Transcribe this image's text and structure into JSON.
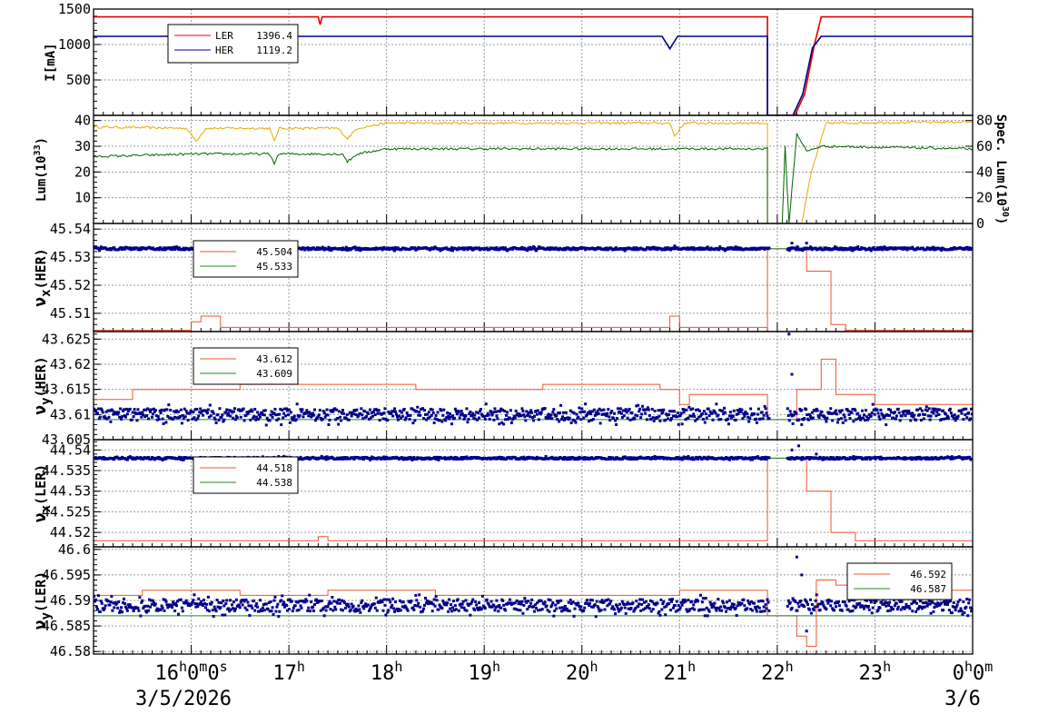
{
  "chart_data": [
    {
      "type": "line",
      "ylabel": "I[mA]",
      "ylim": [
        0,
        1500
      ],
      "yticks": [
        "500",
        "1000",
        "1500"
      ],
      "grid": true,
      "legend": {
        "position": "top-left",
        "entries": [
          {
            "name": "LER",
            "value": "1396.4",
            "color": "#e00000"
          },
          {
            "name": "HER",
            "value": "1119.2",
            "color": "#00008b"
          }
        ]
      },
      "series": [
        {
          "name": "LER",
          "color": "#e00000",
          "points": [
            [
              15.0,
              1390
            ],
            [
              17.3,
              1390
            ],
            [
              17.32,
              1280
            ],
            [
              17.34,
              1390
            ],
            [
              21.9,
              1390
            ],
            [
              21.9,
              0
            ],
            [
              22.18,
              0
            ],
            [
              22.28,
              300
            ],
            [
              22.38,
              1000
            ],
            [
              22.45,
              1390
            ],
            [
              24.0,
              1390
            ]
          ]
        },
        {
          "name": "HER",
          "color": "#00008b",
          "points": [
            [
              15.0,
              1115
            ],
            [
              20.82,
              1115
            ],
            [
              20.9,
              940
            ],
            [
              20.98,
              1115
            ],
            [
              21.9,
              1115
            ],
            [
              21.9,
              0
            ],
            [
              22.16,
              0
            ],
            [
              22.26,
              300
            ],
            [
              22.36,
              950
            ],
            [
              22.45,
              1115
            ],
            [
              24.0,
              1115
            ]
          ]
        }
      ]
    },
    {
      "type": "line",
      "ylabel": "Lum(10^33)",
      "ylabel_right": "Spec. Lum(10^30)",
      "ylim": [
        0,
        42
      ],
      "yticks": [
        "10",
        "20",
        "30",
        "40"
      ],
      "ylim_right": [
        0,
        84
      ],
      "yticks_right": [
        "0",
        "20",
        "40",
        "60",
        "80"
      ],
      "grid": true,
      "series": [
        {
          "name": "",
          "axis": "left",
          "color": "#e6a800",
          "points": [
            [
              15.0,
              37.5
            ],
            [
              15.95,
              37
            ],
            [
              16.05,
              32
            ],
            [
              16.15,
              37
            ],
            [
              16.8,
              37
            ],
            [
              16.85,
              32
            ],
            [
              16.9,
              37
            ],
            [
              17.5,
              37
            ],
            [
              17.6,
              33
            ],
            [
              17.7,
              37
            ],
            [
              18.0,
              39
            ],
            [
              20.0,
              39
            ],
            [
              20.9,
              39
            ],
            [
              20.95,
              34
            ],
            [
              21.05,
              39
            ],
            [
              21.9,
              39
            ],
            [
              21.9,
              0
            ],
            [
              22.25,
              0
            ],
            [
              22.35,
              20
            ],
            [
              22.5,
              39
            ],
            [
              24.0,
              39.5
            ]
          ]
        },
        {
          "name": "",
          "axis": "left",
          "color": "#006400",
          "points": [
            [
              15.0,
              26
            ],
            [
              16.05,
              27
            ],
            [
              16.8,
              27
            ],
            [
              16.85,
              23.5
            ],
            [
              16.9,
              27
            ],
            [
              17.55,
              27
            ],
            [
              17.6,
              24
            ],
            [
              17.7,
              27
            ],
            [
              18.0,
              29
            ],
            [
              21.9,
              29
            ],
            [
              21.9,
              0
            ],
            [
              22.05,
              0
            ],
            [
              22.08,
              30
            ],
            [
              22.12,
              0
            ],
            [
              22.2,
              35
            ],
            [
              22.3,
              28
            ],
            [
              22.45,
              30
            ],
            [
              24.0,
              29
            ]
          ]
        }
      ]
    },
    {
      "type": "scatter",
      "ylabel": "νx(HER)",
      "ylim": [
        45.5035,
        45.542
      ],
      "yticks": [
        "45.51",
        "45.52",
        "45.53",
        "45.54"
      ],
      "grid": true,
      "legend": {
        "position": "top-left",
        "entries": [
          {
            "name": "",
            "value": "45.504",
            "color": "#ee5533"
          },
          {
            "name": "",
            "value": "45.533",
            "color": "#228b22"
          }
        ]
      },
      "setpoint_line": {
        "color": "#ee5533",
        "points": [
          [
            15.0,
            45.504
          ],
          [
            16.0,
            45.507
          ],
          [
            16.1,
            45.509
          ],
          [
            16.3,
            45.505
          ],
          [
            20.9,
            45.509
          ],
          [
            21.0,
            45.505
          ],
          [
            21.9,
            45.504
          ],
          [
            21.9,
            45.533
          ],
          [
            22.3,
            45.525
          ],
          [
            22.55,
            45.506
          ],
          [
            22.7,
            45.504
          ],
          [
            24.0,
            45.504
          ]
        ]
      },
      "reference_line": {
        "color": "#228b22",
        "value": 45.533
      },
      "measured": {
        "color": "#00008b",
        "mean": 45.533,
        "spread": 0.0004,
        "excursions": [
          [
            16.05,
            45.532
          ],
          [
            20.95,
            45.534
          ],
          [
            22.15,
            45.535
          ],
          [
            22.3,
            45.535
          ]
        ]
      }
    },
    {
      "type": "scatter",
      "ylabel": "νy(HER)",
      "ylim": [
        43.605,
        43.6265
      ],
      "yticks": [
        "43.605",
        "43.61",
        "43.615",
        "43.62",
        "43.625"
      ],
      "grid": true,
      "legend": {
        "position": "top-left",
        "entries": [
          {
            "name": "",
            "value": "43.612",
            "color": "#ee5533"
          },
          {
            "name": "",
            "value": "43.609",
            "color": "#228b22"
          }
        ]
      },
      "setpoint_line": {
        "color": "#ee5533",
        "points": [
          [
            15.0,
            43.613
          ],
          [
            15.4,
            43.615
          ],
          [
            16.1,
            43.615
          ],
          [
            16.5,
            43.616
          ],
          [
            17.8,
            43.616
          ],
          [
            18.3,
            43.615
          ],
          [
            19.6,
            43.616
          ],
          [
            20.8,
            43.615
          ],
          [
            21.0,
            43.612
          ],
          [
            21.1,
            43.614
          ],
          [
            21.9,
            43.614
          ],
          [
            21.9,
            43.609
          ],
          [
            22.2,
            43.615
          ],
          [
            22.45,
            43.621
          ],
          [
            22.6,
            43.614
          ],
          [
            23.0,
            43.612
          ],
          [
            24.0,
            43.612
          ]
        ]
      },
      "reference_line": {
        "color": "#228b22",
        "value": 43.609
      },
      "measured": {
        "color": "#00008b",
        "mean": 43.61,
        "spread": 0.0012,
        "excursions": [
          [
            22.12,
            43.626
          ],
          [
            22.15,
            43.618
          ],
          [
            22.25,
            43.608
          ]
        ]
      }
    },
    {
      "type": "scatter",
      "ylabel": "νx(LER)",
      "ylim": [
        44.5165,
        44.5425
      ],
      "yticks": [
        "44.52",
        "44.525",
        "44.53",
        "44.535",
        "44.54"
      ],
      "grid": true,
      "legend": {
        "position": "top-left",
        "entries": [
          {
            "name": "",
            "value": "44.518",
            "color": "#ee5533"
          },
          {
            "name": "",
            "value": "44.538",
            "color": "#228b22"
          }
        ]
      },
      "setpoint_line": {
        "color": "#ee5533",
        "points": [
          [
            15.0,
            44.518
          ],
          [
            17.2,
            44.518
          ],
          [
            17.3,
            44.519
          ],
          [
            17.4,
            44.518
          ],
          [
            21.9,
            44.518
          ],
          [
            21.9,
            44.538
          ],
          [
            22.3,
            44.53
          ],
          [
            22.55,
            44.52
          ],
          [
            22.8,
            44.518
          ],
          [
            24.0,
            44.518
          ]
        ]
      },
      "reference_line": {
        "color": "#228b22",
        "value": 44.538
      },
      "measured": {
        "color": "#00008b",
        "mean": 44.538,
        "spread": 0.00025,
        "excursions": [
          [
            22.15,
            44.54
          ],
          [
            22.22,
            44.541
          ],
          [
            22.4,
            44.539
          ]
        ]
      }
    },
    {
      "type": "scatter",
      "ylabel": "νy(LER)",
      "ylim": [
        46.5795,
        46.6005
      ],
      "yticks": [
        "46.58",
        "46.585",
        "46.59",
        "46.595",
        "46.6"
      ],
      "grid": true,
      "legend": {
        "position": "top-right",
        "entries": [
          {
            "name": "",
            "value": "46.592",
            "color": "#ee5533"
          },
          {
            "name": "",
            "value": "46.587",
            "color": "#228b22"
          }
        ]
      },
      "setpoint_line": {
        "color": "#ee5533",
        "points": [
          [
            15.0,
            46.591
          ],
          [
            15.5,
            46.592
          ],
          [
            16.5,
            46.591
          ],
          [
            17.4,
            46.592
          ],
          [
            18.5,
            46.591
          ],
          [
            20.0,
            46.591
          ],
          [
            21.0,
            46.592
          ],
          [
            21.9,
            46.591
          ],
          [
            21.9,
            46.587
          ],
          [
            22.2,
            46.583
          ],
          [
            22.3,
            46.581
          ],
          [
            22.4,
            46.594
          ],
          [
            22.6,
            46.593
          ],
          [
            22.9,
            46.592
          ],
          [
            24.0,
            46.591
          ]
        ]
      },
      "reference_line": {
        "color": "#228b22",
        "value": 46.587
      },
      "measured": {
        "color": "#00008b",
        "mean": 46.589,
        "spread": 0.0012,
        "excursions": [
          [
            22.2,
            46.5985
          ],
          [
            22.25,
            46.595
          ],
          [
            22.3,
            46.584
          ]
        ]
      }
    }
  ],
  "x_axis": {
    "range": [
      15.0,
      24.0
    ],
    "ticks": [
      {
        "x": 16,
        "label": "16h0m0s"
      },
      {
        "x": 17,
        "label": "17h"
      },
      {
        "x": 18,
        "label": "18h"
      },
      {
        "x": 19,
        "label": "19h"
      },
      {
        "x": 20,
        "label": "20h"
      },
      {
        "x": 21,
        "label": "21h"
      },
      {
        "x": 22,
        "label": "22h"
      },
      {
        "x": 23,
        "label": "23h"
      },
      {
        "x": 24,
        "label": "0h0m"
      }
    ],
    "date_labels": {
      "start": "3/5/2026",
      "end": "3/6"
    }
  }
}
